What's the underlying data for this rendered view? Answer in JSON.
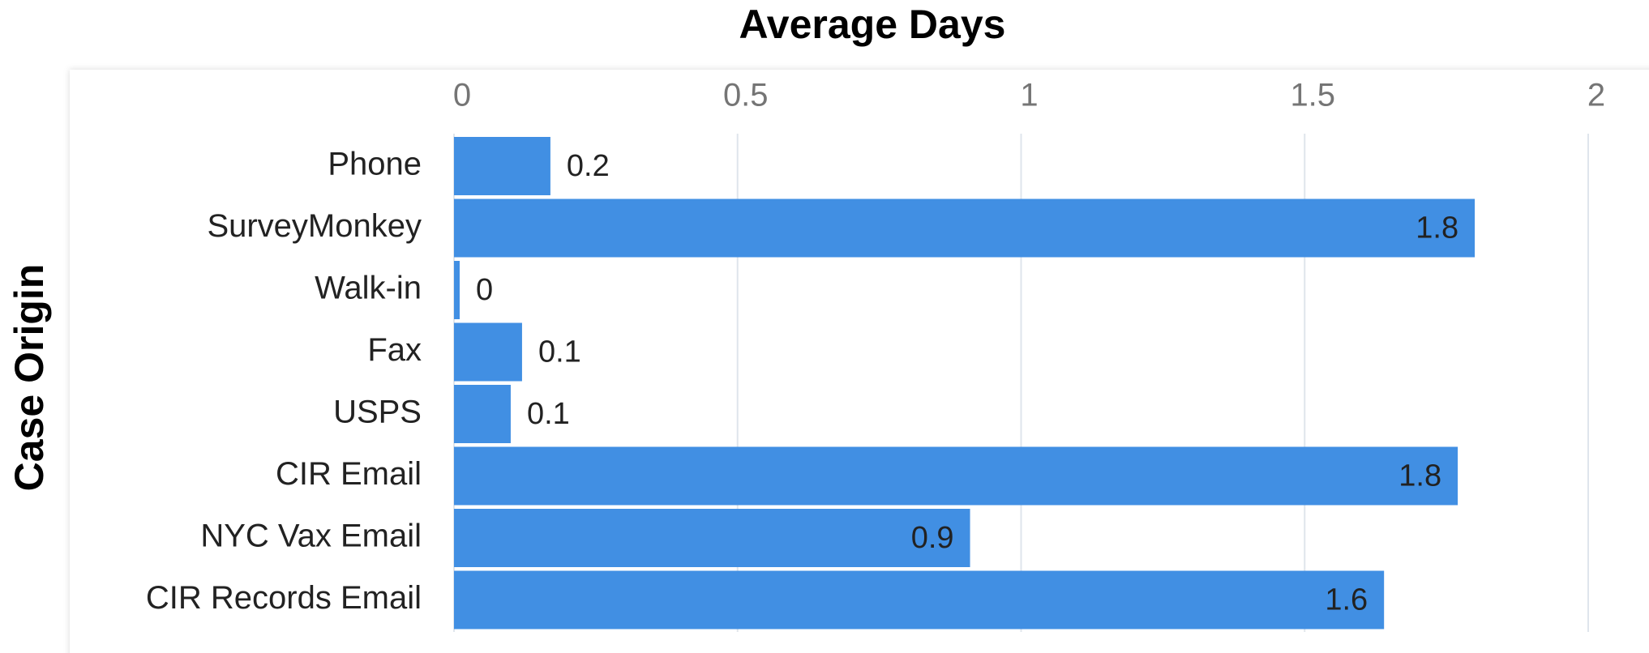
{
  "chart_data": {
    "type": "hbar",
    "title": "Average Days",
    "y_label": "Case Origin",
    "categories": [
      "Phone",
      "SurveyMonkey",
      "Walk-in",
      "Fax",
      "USPS",
      "CIR Email",
      "NYC Vax Email",
      "CIR Records Email"
    ],
    "values": [
      0.17,
      1.8,
      0.01,
      0.12,
      0.1,
      1.77,
      0.91,
      1.64
    ],
    "value_labels": [
      "0.2",
      "1.8",
      "0",
      "0.1",
      "0.1",
      "1.8",
      "0.9",
      "1.6"
    ],
    "color": "#418fe3",
    "xlim": [
      0,
      2
    ],
    "xticks": [
      0,
      0.5,
      1,
      1.5,
      2
    ],
    "grid": true
  }
}
